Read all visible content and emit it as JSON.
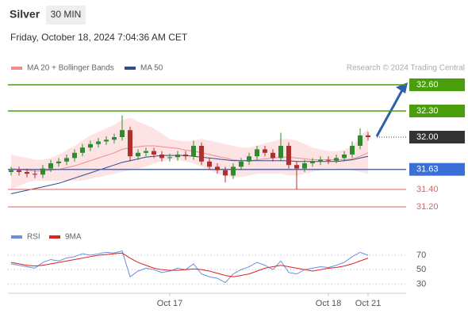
{
  "header": {
    "title": "Silver",
    "timeframe": "30 MIN",
    "datetime": "Friday, October 18, 2024 7:04:36 AM CET"
  },
  "chart_data": [
    {
      "type": "candlestick",
      "credit": "Research © 2024 Trading Central",
      "categories": [
        null,
        null,
        null,
        null,
        null,
        null,
        null,
        null,
        null,
        null,
        null,
        null,
        null,
        null,
        null,
        null,
        null,
        null,
        null,
        null,
        "Oct 17",
        null,
        null,
        null,
        null,
        null,
        null,
        null,
        null,
        null,
        null,
        null,
        null,
        null,
        null,
        null,
        null,
        null,
        null,
        null,
        "Oct 18",
        null,
        null,
        null,
        null,
        "Oct 21"
      ],
      "open": [
        31.6,
        31.62,
        31.6,
        31.58,
        31.57,
        31.64,
        31.7,
        31.72,
        31.76,
        31.82,
        31.88,
        31.92,
        31.95,
        31.97,
        32.0,
        32.08,
        31.78,
        31.82,
        31.84,
        31.8,
        31.76,
        31.77,
        31.8,
        31.78,
        31.9,
        31.72,
        31.66,
        31.62,
        31.56,
        31.66,
        31.72,
        31.78,
        31.86,
        31.82,
        31.76,
        31.9,
        31.68,
        31.64,
        31.7,
        31.72,
        31.74,
        31.73,
        31.76,
        31.8,
        31.9,
        32.02
      ],
      "high": [
        31.66,
        31.66,
        31.64,
        31.62,
        31.68,
        31.74,
        31.76,
        31.8,
        31.86,
        31.92,
        31.96,
        31.99,
        32.01,
        32.04,
        32.25,
        32.12,
        31.86,
        31.88,
        31.88,
        31.84,
        31.81,
        31.84,
        31.84,
        31.96,
        31.94,
        31.76,
        31.7,
        31.66,
        31.7,
        31.76,
        31.82,
        31.9,
        31.9,
        31.86,
        32.05,
        31.94,
        31.72,
        31.74,
        31.76,
        31.78,
        31.78,
        31.8,
        31.84,
        31.95,
        32.1,
        32.06
      ],
      "low": [
        31.56,
        31.56,
        31.54,
        31.53,
        31.53,
        31.6,
        31.66,
        31.68,
        31.72,
        31.78,
        31.84,
        31.88,
        31.91,
        31.93,
        31.96,
        31.72,
        31.74,
        31.78,
        31.76,
        31.72,
        31.72,
        31.73,
        31.74,
        31.74,
        31.68,
        31.62,
        31.58,
        31.48,
        31.52,
        31.62,
        31.68,
        31.74,
        31.78,
        31.72,
        31.72,
        31.64,
        31.4,
        31.6,
        31.66,
        31.68,
        31.69,
        31.7,
        31.72,
        31.76,
        31.86,
        31.96
      ],
      "close": [
        31.62,
        31.6,
        31.58,
        31.57,
        31.64,
        31.7,
        31.72,
        31.76,
        31.82,
        31.88,
        31.92,
        31.95,
        31.97,
        32.0,
        32.08,
        31.78,
        31.82,
        31.84,
        31.8,
        31.76,
        31.77,
        31.8,
        31.78,
        31.9,
        31.72,
        31.66,
        31.62,
        31.56,
        31.66,
        31.72,
        31.78,
        31.86,
        31.82,
        31.76,
        31.9,
        31.68,
        31.64,
        31.7,
        31.72,
        31.74,
        31.73,
        31.76,
        31.8,
        31.9,
        32.02,
        32.0
      ],
      "up_color": "#2e8b2e",
      "down_color": "#b03030",
      "series": [
        {
          "name": "MA 20 + Bollinger Bands",
          "color": "#f28b8b",
          "band_color": "#fde3e3",
          "values": [
            31.64,
            31.63,
            31.62,
            31.61,
            31.61,
            31.62,
            31.63,
            31.65,
            31.67,
            31.7,
            31.73,
            31.76,
            31.79,
            31.82,
            31.86,
            31.88,
            31.89,
            31.9,
            31.9,
            31.89,
            31.88,
            31.87,
            31.85,
            31.84,
            31.82,
            31.8,
            31.78,
            31.76,
            31.74,
            31.73,
            31.73,
            31.74,
            31.75,
            31.76,
            31.77,
            31.77,
            31.76,
            31.75,
            31.74,
            31.74,
            31.74,
            31.74,
            31.74,
            31.75,
            31.78,
            31.82
          ],
          "upper": [
            31.8,
            31.78,
            31.76,
            31.74,
            31.74,
            31.76,
            31.8,
            31.85,
            31.9,
            31.96,
            32.02,
            32.06,
            32.1,
            32.14,
            32.2,
            32.22,
            32.18,
            32.14,
            32.1,
            32.04,
            31.98,
            31.96,
            31.95,
            31.96,
            31.98,
            31.96,
            31.94,
            31.92,
            31.9,
            31.88,
            31.88,
            31.9,
            31.93,
            31.95,
            31.98,
            31.98,
            31.96,
            31.92,
            31.88,
            31.86,
            31.84,
            31.84,
            31.85,
            31.9,
            32.0,
            32.1
          ],
          "lower": [
            31.4,
            31.44,
            31.48,
            31.5,
            31.5,
            31.5,
            31.5,
            31.5,
            31.5,
            31.5,
            31.52,
            31.54,
            31.56,
            31.58,
            31.6,
            31.62,
            31.64,
            31.66,
            31.7,
            31.72,
            31.74,
            31.74,
            31.72,
            31.7,
            31.66,
            31.62,
            31.58,
            31.56,
            31.54,
            31.54,
            31.56,
            31.58,
            31.58,
            31.58,
            31.58,
            31.56,
            31.56,
            31.58,
            31.6,
            31.62,
            31.64,
            31.64,
            31.63,
            31.62,
            31.6,
            31.58
          ]
        },
        {
          "name": "MA 50",
          "color": "#2e4f8f",
          "values": [
            31.35,
            31.37,
            31.39,
            31.41,
            31.43,
            31.45,
            31.47,
            31.5,
            31.53,
            31.56,
            31.59,
            31.62,
            31.65,
            31.68,
            31.71,
            31.73,
            31.75,
            31.77,
            31.78,
            31.79,
            31.79,
            31.79,
            31.79,
            31.78,
            31.77,
            31.76,
            31.75,
            31.74,
            31.73,
            31.73,
            31.73,
            31.73,
            31.73,
            31.73,
            31.73,
            31.73,
            31.72,
            31.72,
            31.72,
            31.72,
            31.72,
            31.72,
            31.73,
            31.74,
            31.76,
            31.78
          ]
        }
      ],
      "levels": [
        {
          "value": 32.6,
          "label": "32.60",
          "color": "#4a9e0e",
          "boxed": true
        },
        {
          "value": 32.3,
          "label": "32.30",
          "color": "#4a9e0e",
          "boxed": true
        },
        {
          "value": 32.0,
          "label": "32.00",
          "color": "#333333",
          "boxed": true
        },
        {
          "value": 31.63,
          "label": "31.63",
          "color": "#3a6fd8",
          "boxed": true
        },
        {
          "value": 31.4,
          "label": "31.40",
          "color": "#e06060",
          "boxed": false
        },
        {
          "value": 31.2,
          "label": "31.20",
          "color": "#e06060",
          "boxed": false
        }
      ],
      "ylim": [
        31.0,
        32.7
      ]
    },
    {
      "type": "line",
      "series": [
        {
          "name": "RSI",
          "color": "#6a8fe0",
          "values": [
            58,
            56,
            54,
            52,
            60,
            64,
            62,
            66,
            68,
            72,
            70,
            72,
            74,
            73,
            76,
            40,
            48,
            52,
            50,
            46,
            48,
            52,
            50,
            58,
            44,
            40,
            38,
            32,
            44,
            50,
            54,
            60,
            56,
            50,
            62,
            46,
            44,
            50,
            52,
            54,
            53,
            56,
            60,
            68,
            74,
            70
          ]
        },
        {
          "name": "9MA",
          "color": "#dd2222",
          "values": [
            60,
            58,
            56,
            55,
            56,
            58,
            60,
            62,
            64,
            66,
            68,
            70,
            71,
            72,
            73,
            66,
            60,
            56,
            52,
            50,
            49,
            49,
            50,
            51,
            50,
            48,
            45,
            42,
            40,
            42,
            44,
            48,
            52,
            54,
            56,
            54,
            52,
            50,
            48,
            50,
            52,
            53,
            55,
            58,
            62,
            66
          ]
        }
      ],
      "ylim": [
        26,
        81
      ],
      "yticks": [
        70,
        50,
        30
      ]
    }
  ]
}
